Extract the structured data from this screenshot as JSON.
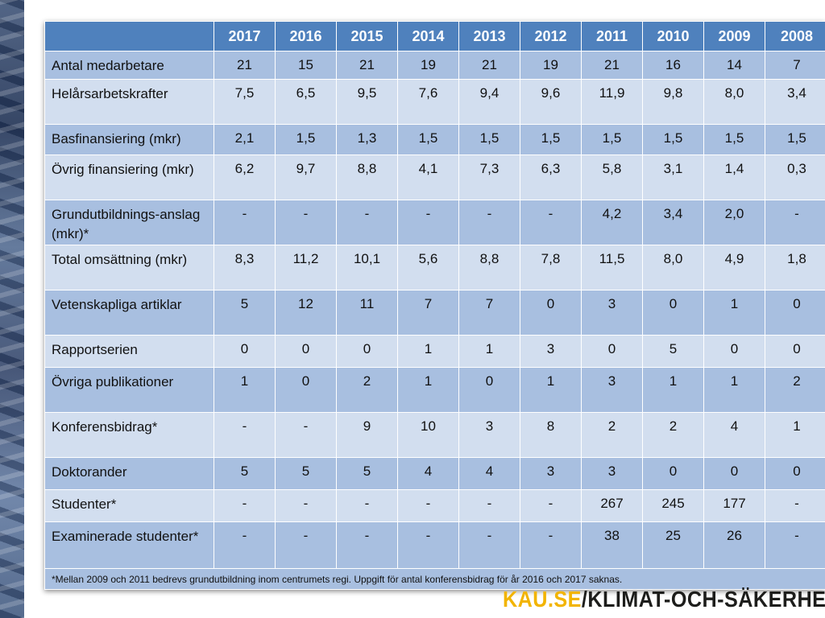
{
  "years": [
    "2017",
    "2016",
    "2015",
    "2014",
    "2013",
    "2012",
    "2011",
    "2010",
    "2009",
    "2008"
  ],
  "rows": [
    {
      "label": "Antal medarbetare",
      "values": [
        "21",
        "15",
        "21",
        "19",
        "21",
        "19",
        "21",
        "16",
        "14",
        "7"
      ]
    },
    {
      "label": "Helårsarbetskrafter",
      "values": [
        "7,5",
        "6,5",
        "9,5",
        "7,6",
        "9,4",
        "9,6",
        "11,9",
        "9,8",
        "8,0",
        "3,4"
      ]
    },
    {
      "label": "Basfinansiering (mkr)",
      "values": [
        "2,1",
        "1,5",
        "1,3",
        "1,5",
        "1,5",
        "1,5",
        "1,5",
        "1,5",
        "1,5",
        "1,5"
      ]
    },
    {
      "label": "Övrig finansiering (mkr)",
      "values": [
        "6,2",
        "9,7",
        "8,8",
        "4,1",
        "7,3",
        "6,3",
        "5,8",
        "3,1",
        "1,4",
        "0,3"
      ]
    },
    {
      "label": "Grundutbildnings-anslag (mkr)*",
      "values": [
        "-",
        "-",
        "-",
        "-",
        "-",
        "-",
        "4,2",
        "3,4",
        "2,0",
        "-"
      ]
    },
    {
      "label": "Total omsättning (mkr)",
      "values": [
        "8,3",
        "11,2",
        "10,1",
        "5,6",
        "8,8",
        "7,8",
        "11,5",
        "8,0",
        "4,9",
        "1,8"
      ]
    },
    {
      "label": "Vetenskapliga artiklar",
      "values": [
        "5",
        "12",
        "11",
        "7",
        "7",
        "0",
        "3",
        "0",
        "1",
        "0"
      ]
    },
    {
      "label": "Rapportserien",
      "values": [
        "0",
        "0",
        "0",
        "1",
        "1",
        "3",
        "0",
        "5",
        "0",
        "0"
      ]
    },
    {
      "label": "Övriga publikationer",
      "values": [
        "1",
        "0",
        "2",
        "1",
        "0",
        "1",
        "3",
        "1",
        "1",
        "2"
      ]
    },
    {
      "label": "Konferensbidrag*",
      "values": [
        "-",
        "-",
        "9",
        "10",
        "3",
        "8",
        "2",
        "2",
        "4",
        "1"
      ]
    },
    {
      "label": "Doktorander",
      "values": [
        "5",
        "5",
        "5",
        "4",
        "4",
        "3",
        "3",
        "0",
        "0",
        "0"
      ]
    },
    {
      "label": "Studenter*",
      "values": [
        "-",
        "-",
        "-",
        "-",
        "-",
        "-",
        "267",
        "245",
        "177",
        "-"
      ]
    },
    {
      "label": "Examinerade studenter*",
      "values": [
        "-",
        "-",
        "-",
        "-",
        "-",
        "-",
        "38",
        "25",
        "26",
        "-"
      ]
    }
  ],
  "footnote": "*Mellan 2009 och 2011 bedrevs grundutbildning inom centrumets regi. Uppgift för antal konferensbidrag för år 2016 och 2017 saknas.",
  "brand": {
    "kau": "KAU.SE",
    "rest": "/KLIMAT-OCH-SÄKERHET"
  },
  "colors": {
    "header": "#4f81bd",
    "row_dark": "#a8bfe0",
    "row_light": "#d2deef",
    "brand_yellow": "#f2b400"
  }
}
